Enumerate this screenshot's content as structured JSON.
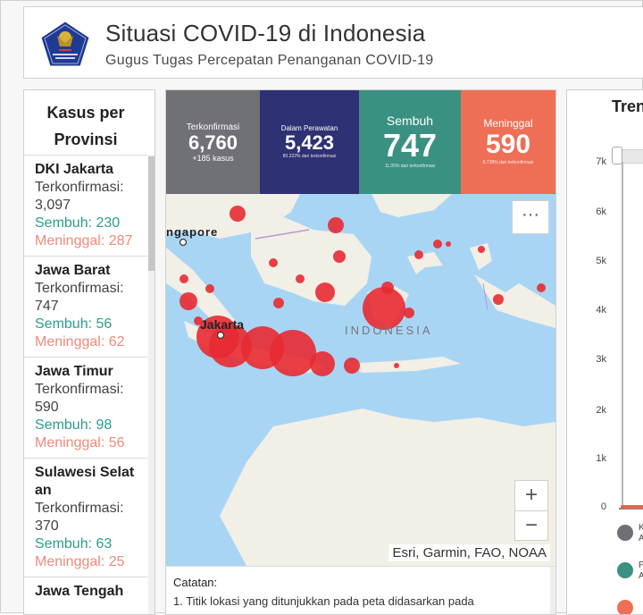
{
  "header": {
    "title": "Situasi COVID-19 di Indonesia",
    "subtitle": "Gugus Tugas Percepatan Penanganan COVID-19",
    "logo_text": "GUGUS TUGAS PERCEPATAN PENANGANAN COVID-19"
  },
  "provinces_panel": {
    "title_line1": "Kasus per",
    "title_line2": "Provinsi",
    "items": [
      {
        "name": "DKI Jakarta",
        "confirmed_label": "Terkonfirmasi:",
        "confirmed": "3,097",
        "recovered": "Sembuh: 230",
        "deaths": "Meninggal: 287"
      },
      {
        "name": "Jawa Barat",
        "confirmed_label": "Terkonfirmasi:",
        "confirmed": "747",
        "recovered": "Sembuh: 56",
        "deaths": "Meninggal: 62"
      },
      {
        "name": "Jawa Timur",
        "confirmed_label": "Terkonfirmasi:",
        "confirmed": "590",
        "recovered": "Sembuh: 98",
        "deaths": "Meninggal: 56"
      },
      {
        "name": "Sulawesi Selatan",
        "confirmed_label": "Terkonfirmasi:",
        "confirmed": "370",
        "recovered": "Sembuh: 63",
        "deaths": "Meninggal: 25"
      },
      {
        "name": "Jawa Tengah",
        "confirmed_label": "",
        "confirmed": "",
        "recovered": "",
        "deaths": ""
      }
    ]
  },
  "stats": {
    "confirmed": {
      "label": "Terkonfirmasi",
      "value": "6,760",
      "sub": "+185 kasus",
      "color": "#707077"
    },
    "treated": {
      "label": "Dalam Perawatan",
      "value": "5,423",
      "sub": "80.222% dari terkonfirmasi",
      "color": "#2e3173"
    },
    "recovered": {
      "label": "Sembuh",
      "value": "747",
      "sub": "11.05% dari terkonfirmasi",
      "color": "#3a9181"
    },
    "deaths": {
      "label": "Meninggal",
      "value": "590",
      "sub": "8.728% dari terkonfirmasi",
      "color": "#ee6f55"
    }
  },
  "map": {
    "label_country": "INDONESIA",
    "label_city": "Jakarta",
    "label_singapore": "ngapore",
    "attribution": "Esri, Garmin, FAO, NOAA",
    "more_icon": "···",
    "zoom_in": "+",
    "zoom_out": "−"
  },
  "notes": {
    "title": "Catatan:",
    "text": "1. Titik lokasi yang ditunjukkan pada peta didasarkan pada"
  },
  "trend_panel": {
    "title": "Tren",
    "y_ticks": [
      "7k",
      "6k",
      "5k",
      "4k",
      "3k",
      "2k",
      "1k",
      "0"
    ],
    "legend": [
      {
        "initial": "K",
        "sub": "A",
        "color": "#6f6f76"
      },
      {
        "initial": "P",
        "sub": "A",
        "color": "#3a9181"
      },
      {
        "initial": "",
        "sub": "",
        "color": "#ee6f55"
      }
    ]
  }
}
